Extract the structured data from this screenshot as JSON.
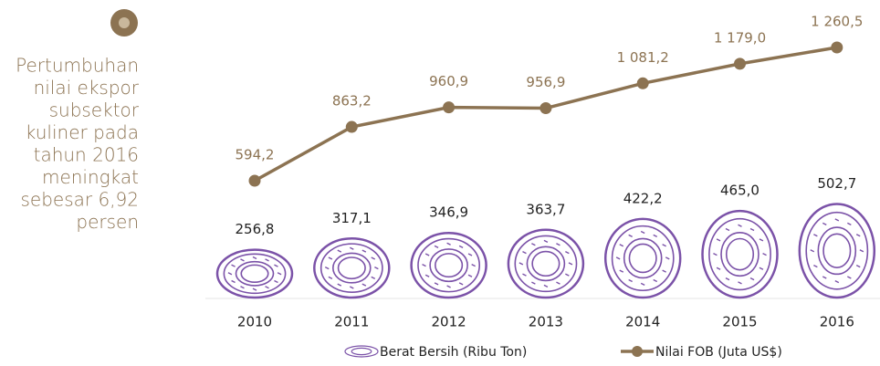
{
  "chart_data": {
    "type": "donut-line",
    "annotation": [
      "Pertumbuhan",
      "nilai ekspor",
      "subsektor",
      "kuliner pada",
      "tahun 2016",
      "meningkat",
      "sebesar 6,92",
      "persen"
    ],
    "categories": [
      "2010",
      "2011",
      "2012",
      "2013",
      "2014",
      "2015",
      "2016"
    ],
    "series": [
      {
        "name": "Berat Bersih (Ribu Ton)",
        "color": "#7b52a8",
        "values": [
          256.8,
          317.1,
          346.9,
          363.7,
          422.2,
          465.0,
          502.7
        ],
        "value_labels": [
          "256,8",
          "317,1",
          "346,9",
          "363,7",
          "422,2",
          "465,0",
          "502,7"
        ]
      },
      {
        "name": "Nilai FOB (Juta US$)",
        "color": "#8c7352",
        "values": [
          594.2,
          863.2,
          960.9,
          956.9,
          1081.2,
          1179.0,
          1260.5
        ],
        "value_labels": [
          "594,2",
          "863,2",
          "960,9",
          "956,9",
          "1 081,2",
          "1 179,0",
          "1 260,5"
        ]
      }
    ]
  }
}
